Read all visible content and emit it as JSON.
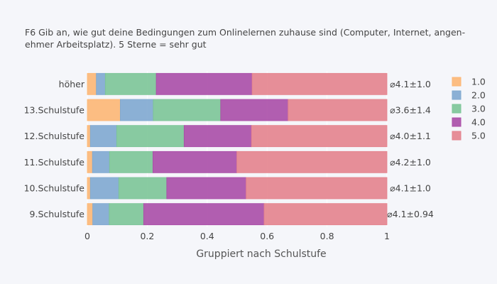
{
  "chart_data": {
    "type": "bar",
    "orientation": "horizontal",
    "stacked": true,
    "title": "F6 Gib an, wie gut deine Bedingungen zum Onlinelernen zuhause sind (Computer, Internet, angen-\nehmer Arbeitsplatz). 5 Sterne = sehr gut",
    "xlabel": "Gruppiert nach Schulstufe",
    "ylabel": "",
    "xlim": [
      0,
      1
    ],
    "xticks": [
      0,
      0.2,
      0.4,
      0.6,
      0.8,
      1
    ],
    "xtick_labels": [
      "0",
      "0.2",
      "0.4",
      "0.6",
      "0.8",
      "1"
    ],
    "grid": true,
    "legend_position": "right",
    "categories": [
      "höher",
      "13.Schulstufe",
      "12.Schulstufe",
      "11.Schulstufe",
      "10.Schulstufe",
      "9.Schulstufe"
    ],
    "annotations": [
      "⌀4.1±1.0",
      "⌀3.6±1.4",
      "⌀4.0±1.1",
      "⌀4.2±1.0",
      "⌀4.1±1.0",
      "⌀4.1±0.94"
    ],
    "series": [
      {
        "name": "1.0",
        "color": "#fdb774",
        "values": [
          0.03,
          0.11,
          0.01,
          0.017,
          0.01,
          0.018
        ]
      },
      {
        "name": "2.0",
        "color": "#80a9d0",
        "values": [
          0.03,
          0.11,
          0.088,
          0.057,
          0.095,
          0.055
        ]
      },
      {
        "name": "3.0",
        "color": "#7cc597",
        "values": [
          0.17,
          0.225,
          0.225,
          0.145,
          0.16,
          0.115
        ]
      },
      {
        "name": "4.0",
        "color": "#aa4ea7",
        "values": [
          0.32,
          0.225,
          0.225,
          0.28,
          0.265,
          0.402
        ]
      },
      {
        "name": "5.0",
        "color": "#e4838d",
        "values": [
          0.45,
          0.33,
          0.452,
          0.501,
          0.47,
          0.41
        ]
      }
    ]
  }
}
